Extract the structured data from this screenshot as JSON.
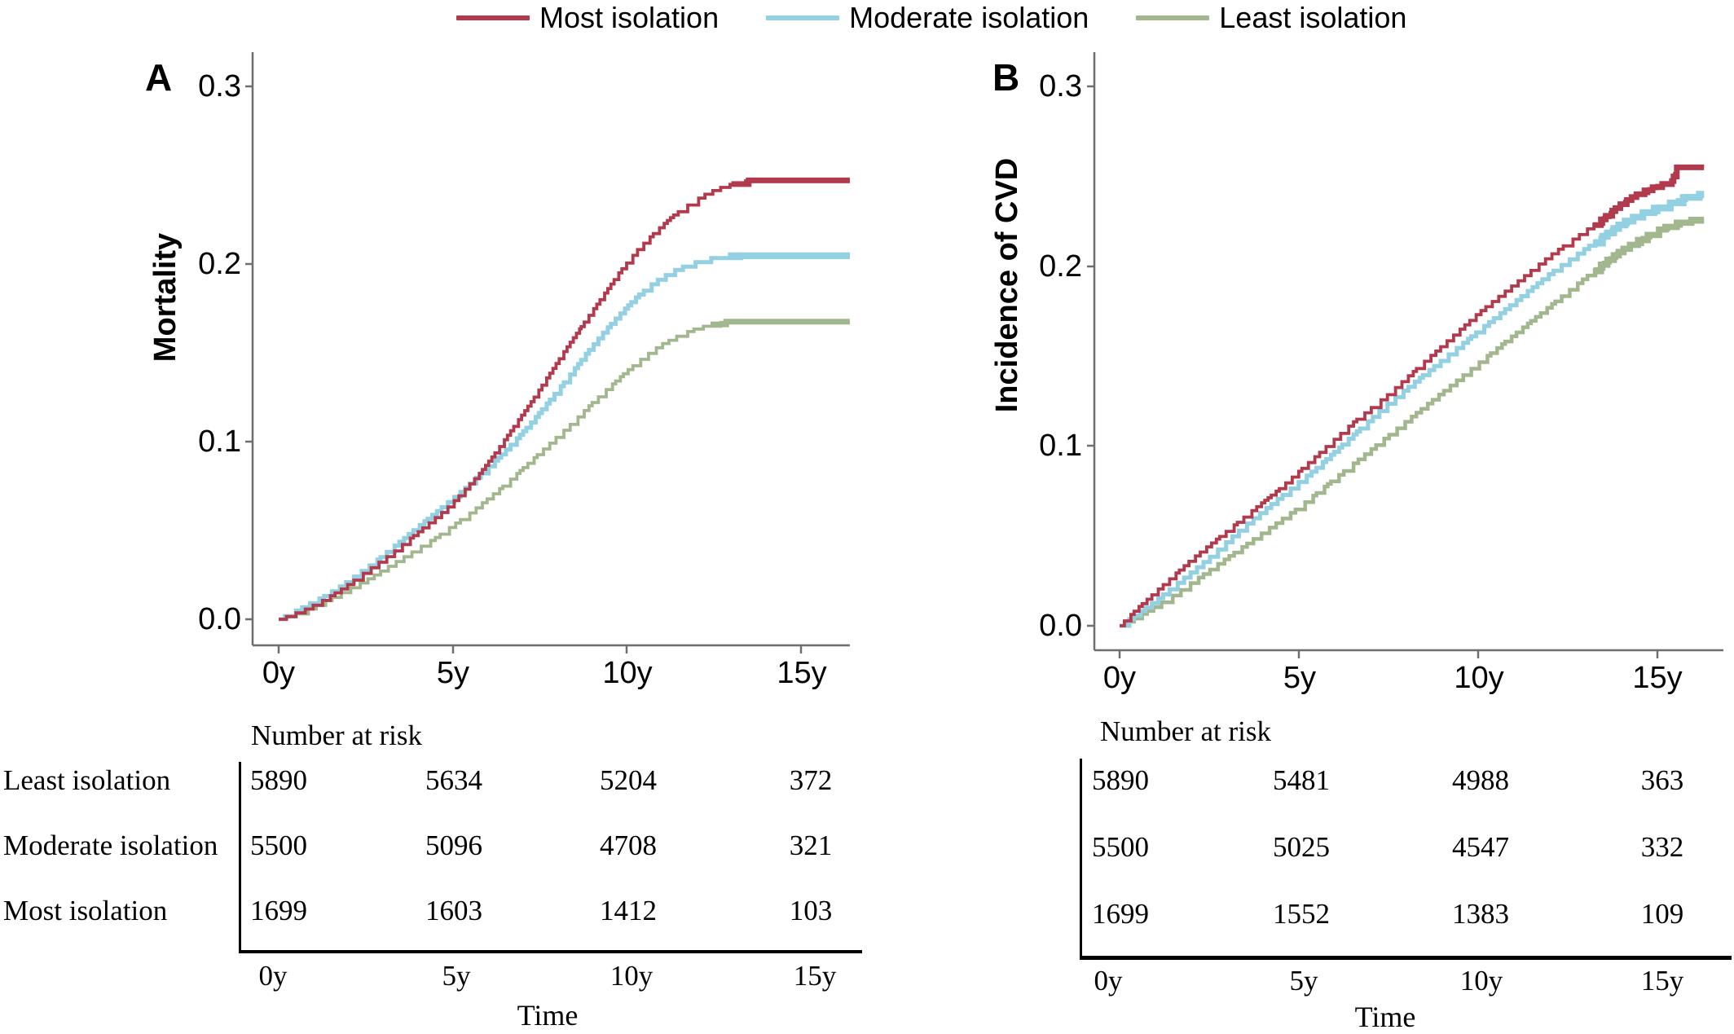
{
  "legend": {
    "items": [
      {
        "label": "Most isolation",
        "color": "#b23a4d"
      },
      {
        "label": "Moderate isolation",
        "color": "#92d0e2"
      },
      {
        "label": "Least isolation",
        "color": "#a2b78e"
      }
    ]
  },
  "axis_color": "#6e6e6e",
  "chart_data": [
    {
      "type": "line",
      "panel": "A",
      "title": "Mortality",
      "xlabel": "Time",
      "x_ticks": [
        "0y",
        "5y",
        "10y",
        "15y"
      ],
      "y_ticks": [
        "0.3",
        "0.2",
        "0.1",
        "0.0"
      ],
      "xlim": [
        0,
        16.4
      ],
      "ylim": [
        0,
        0.3
      ],
      "grid": false,
      "legend_position": "top-center",
      "series": [
        {
          "name": "Most isolation",
          "color": "#b23a4d",
          "end_value": 0.248,
          "line_width": 3.8,
          "thick_from": 13.0,
          "points": [
            [
              0,
              0
            ],
            [
              0.3,
              0.002
            ],
            [
              0.8,
              0.006
            ],
            [
              1.3,
              0.011
            ],
            [
              1.8,
              0.017
            ],
            [
              2.3,
              0.024
            ],
            [
              2.8,
              0.031
            ],
            [
              3.3,
              0.038
            ],
            [
              3.8,
              0.046
            ],
            [
              4.3,
              0.054
            ],
            [
              4.8,
              0.062
            ],
            [
              5.3,
              0.072
            ],
            [
              5.8,
              0.083
            ],
            [
              6.3,
              0.096
            ],
            [
              6.8,
              0.11
            ],
            [
              7.3,
              0.124
            ],
            [
              7.8,
              0.139
            ],
            [
              8.3,
              0.154
            ],
            [
              8.8,
              0.168
            ],
            [
              9.3,
              0.182
            ],
            [
              9.8,
              0.196
            ],
            [
              10.3,
              0.208
            ],
            [
              10.8,
              0.218
            ],
            [
              11.3,
              0.227
            ],
            [
              11.8,
              0.234
            ],
            [
              12.3,
              0.24
            ],
            [
              12.8,
              0.244
            ],
            [
              13.3,
              0.2465
            ],
            [
              13.8,
              0.248
            ],
            [
              16.4,
              0.248
            ]
          ]
        },
        {
          "name": "Moderate isolation",
          "color": "#92d0e2",
          "end_value": 0.205,
          "line_width": 5.0,
          "thick_from": 12.9,
          "points": [
            [
              0,
              0
            ],
            [
              0.3,
              0.003
            ],
            [
              0.8,
              0.008
            ],
            [
              1.3,
              0.013
            ],
            [
              1.8,
              0.019
            ],
            [
              2.3,
              0.026
            ],
            [
              2.8,
              0.033
            ],
            [
              3.3,
              0.041
            ],
            [
              3.8,
              0.049
            ],
            [
              4.3,
              0.057
            ],
            [
              4.8,
              0.065
            ],
            [
              5.3,
              0.073
            ],
            [
              5.8,
              0.082
            ],
            [
              6.3,
              0.091
            ],
            [
              6.8,
              0.101
            ],
            [
              7.3,
              0.112
            ],
            [
              7.8,
              0.124
            ],
            [
              8.3,
              0.136
            ],
            [
              8.8,
              0.149
            ],
            [
              9.3,
              0.161
            ],
            [
              9.8,
              0.172
            ],
            [
              10.3,
              0.182
            ],
            [
              10.8,
              0.19
            ],
            [
              11.3,
              0.196
            ],
            [
              11.8,
              0.2
            ],
            [
              12.3,
              0.203
            ],
            [
              12.8,
              0.2045
            ],
            [
              13.2,
              0.205
            ],
            [
              16.4,
              0.205
            ]
          ]
        },
        {
          "name": "Least isolation",
          "color": "#a2b78e",
          "end_value": 0.168,
          "line_width": 3.8,
          "thick_from": 12.4,
          "points": [
            [
              0,
              0
            ],
            [
              0.5,
              0.003
            ],
            [
              1,
              0.007
            ],
            [
              1.5,
              0.012
            ],
            [
              2,
              0.017
            ],
            [
              2.5,
              0.022
            ],
            [
              3,
              0.028
            ],
            [
              3.5,
              0.034
            ],
            [
              4,
              0.04
            ],
            [
              4.5,
              0.046
            ],
            [
              5,
              0.053
            ],
            [
              5.5,
              0.06
            ],
            [
              6,
              0.068
            ],
            [
              6.5,
              0.076
            ],
            [
              7,
              0.085
            ],
            [
              7.5,
              0.094
            ],
            [
              8,
              0.103
            ],
            [
              8.5,
              0.112
            ],
            [
              9,
              0.122
            ],
            [
              9.5,
              0.131
            ],
            [
              10,
              0.14
            ],
            [
              10.5,
              0.148
            ],
            [
              11,
              0.155
            ],
            [
              11.5,
              0.16
            ],
            [
              12,
              0.164
            ],
            [
              12.5,
              0.1665
            ],
            [
              13,
              0.168
            ],
            [
              16.4,
              0.168
            ]
          ]
        }
      ],
      "number_at_risk": {
        "label": "Number at risk",
        "time_label": "Time",
        "times": [
          "0y",
          "5y",
          "10y",
          "15y"
        ],
        "rows": [
          {
            "name": "Least isolation",
            "values": [
              "5890",
              "5634",
              "5204",
              "372"
            ]
          },
          {
            "name": "Moderate isolation",
            "values": [
              "5500",
              "5096",
              "4708",
              "321"
            ]
          },
          {
            "name": "Most isolation",
            "values": [
              "1699",
              "1603",
              "1412",
              "103"
            ]
          }
        ]
      }
    },
    {
      "type": "line",
      "panel": "B",
      "title": "Incidence of CVD",
      "xlabel": "Time",
      "x_ticks": [
        "0y",
        "5y",
        "10y",
        "15y"
      ],
      "y_ticks": [
        "0.3",
        "0.2",
        "0.1",
        "0.0"
      ],
      "xlim": [
        0,
        16.3
      ],
      "ylim": [
        0,
        0.3
      ],
      "grid": false,
      "legend_position": "top-center",
      "series": [
        {
          "name": "Most isolation",
          "color": "#b23a4d",
          "end_value": 0.2555,
          "line_width": 3.8,
          "thick_from": 13.2,
          "points": [
            [
              0,
              0
            ],
            [
              0.5,
              0.01
            ],
            [
              1,
              0.019
            ],
            [
              1.5,
              0.028
            ],
            [
              2,
              0.037
            ],
            [
              2.5,
              0.045
            ],
            [
              3,
              0.053
            ],
            [
              3.5,
              0.061
            ],
            [
              4,
              0.069
            ],
            [
              4.5,
              0.077
            ],
            [
              5,
              0.086
            ],
            [
              5.5,
              0.095
            ],
            [
              6,
              0.104
            ],
            [
              6.5,
              0.113
            ],
            [
              7,
              0.121
            ],
            [
              7.5,
              0.129
            ],
            [
              8,
              0.138
            ],
            [
              8.5,
              0.147
            ],
            [
              9,
              0.156
            ],
            [
              9.5,
              0.165
            ],
            [
              10,
              0.174
            ],
            [
              10.5,
              0.182
            ],
            [
              11,
              0.19
            ],
            [
              11.5,
              0.198
            ],
            [
              12,
              0.206
            ],
            [
              12.5,
              0.213
            ],
            [
              13,
              0.22
            ],
            [
              13.5,
              0.227
            ],
            [
              14,
              0.235
            ],
            [
              14.5,
              0.241
            ],
            [
              15,
              0.245
            ],
            [
              15.4,
              0.247
            ],
            [
              15.55,
              0.2555
            ],
            [
              16.3,
              0.2555
            ]
          ]
        },
        {
          "name": "Moderate isolation",
          "color": "#92d0e2",
          "end_value": 0.24,
          "line_width": 5.0,
          "thick_from": 13.2,
          "points": [
            [
              0,
              0
            ],
            [
              0.5,
              0.007
            ],
            [
              1,
              0.014
            ],
            [
              1.5,
              0.022
            ],
            [
              2,
              0.03
            ],
            [
              2.5,
              0.038
            ],
            [
              3,
              0.047
            ],
            [
              3.5,
              0.056
            ],
            [
              4,
              0.064
            ],
            [
              4.5,
              0.072
            ],
            [
              5,
              0.08
            ],
            [
              5.5,
              0.088
            ],
            [
              6,
              0.097
            ],
            [
              6.5,
              0.106
            ],
            [
              7,
              0.115
            ],
            [
              7.5,
              0.124
            ],
            [
              8,
              0.132
            ],
            [
              8.5,
              0.14
            ],
            [
              9,
              0.148
            ],
            [
              9.5,
              0.156
            ],
            [
              10,
              0.164
            ],
            [
              10.5,
              0.172
            ],
            [
              11,
              0.18
            ],
            [
              11.5,
              0.188
            ],
            [
              12,
              0.196
            ],
            [
              12.5,
              0.203
            ],
            [
              13,
              0.21
            ],
            [
              13.5,
              0.217
            ],
            [
              14,
              0.224
            ],
            [
              14.5,
              0.229
            ],
            [
              15,
              0.233
            ],
            [
              15.5,
              0.236
            ],
            [
              15.9,
              0.24
            ],
            [
              16.3,
              0.24
            ]
          ]
        },
        {
          "name": "Least isolation",
          "color": "#a2b78e",
          "end_value": 0.227,
          "line_width": 4.5,
          "thick_from": 13.2,
          "points": [
            [
              0,
              0
            ],
            [
              0.5,
              0.005
            ],
            [
              1,
              0.011
            ],
            [
              1.5,
              0.017
            ],
            [
              2,
              0.024
            ],
            [
              2.5,
              0.031
            ],
            [
              3,
              0.038
            ],
            [
              3.5,
              0.045
            ],
            [
              4,
              0.052
            ],
            [
              4.5,
              0.059
            ],
            [
              5,
              0.066
            ],
            [
              5.5,
              0.074
            ],
            [
              6,
              0.082
            ],
            [
              6.5,
              0.09
            ],
            [
              7,
              0.098
            ],
            [
              7.5,
              0.106
            ],
            [
              8,
              0.114
            ],
            [
              8.5,
              0.122
            ],
            [
              9,
              0.13
            ],
            [
              9.5,
              0.138
            ],
            [
              10,
              0.146
            ],
            [
              10.5,
              0.154
            ],
            [
              11,
              0.162
            ],
            [
              11.5,
              0.17
            ],
            [
              12,
              0.178
            ],
            [
              12.5,
              0.186
            ],
            [
              13,
              0.194
            ],
            [
              13.5,
              0.202
            ],
            [
              14,
              0.209
            ],
            [
              14.5,
              0.215
            ],
            [
              15,
              0.22
            ],
            [
              15.5,
              0.224
            ],
            [
              16.3,
              0.227
            ]
          ]
        }
      ],
      "number_at_risk": {
        "label": "Number at risk",
        "time_label": "Time",
        "times": [
          "0y",
          "5y",
          "10y",
          "15y"
        ],
        "rows": [
          {
            "name": "Least isolation",
            "values": [
              "5890",
              "5481",
              "4988",
              "363"
            ]
          },
          {
            "name": "Moderate isolation",
            "values": [
              "5500",
              "5025",
              "4547",
              "332"
            ]
          },
          {
            "name": "Most isolation",
            "values": [
              "1699",
              "1552",
              "1383",
              "109"
            ]
          }
        ]
      }
    }
  ]
}
